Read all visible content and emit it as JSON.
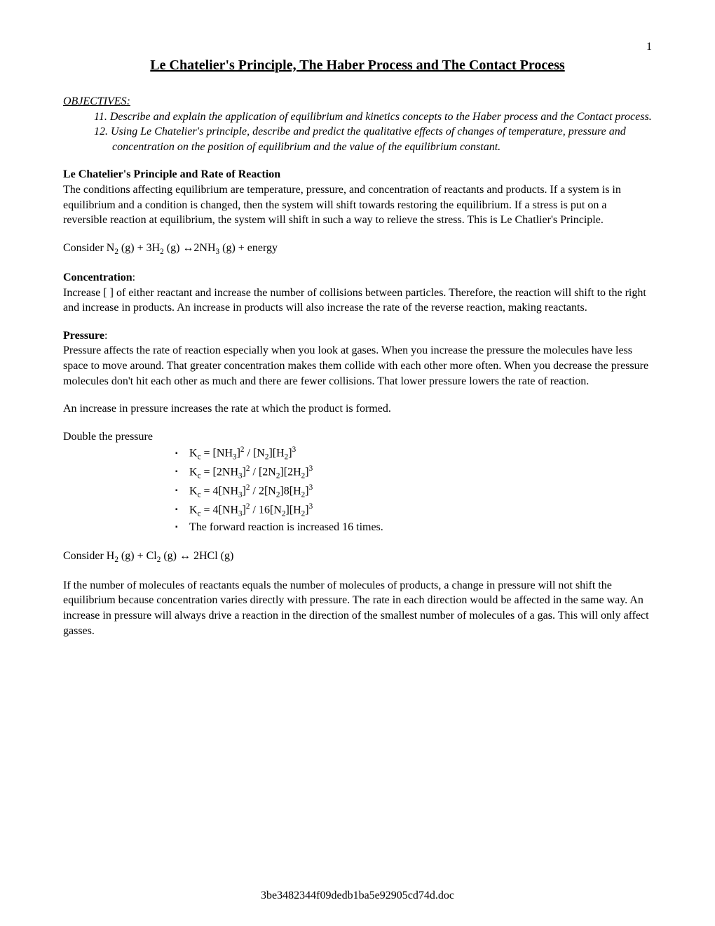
{
  "page_number": "1",
  "title": "Le Chatelier's Principle, The Haber Process and The Contact Process",
  "objectives_label": "OBJECTIVES:",
  "objectives": [
    "11. Describe and explain the application of equilibrium and kinetics concepts to the Haber process and the Contact process.",
    "12. Using Le Chatelier's principle, describe and predict the qualitative effects of changes of temperature, pressure and concentration on the position of equilibrium and the value of the equilibrium constant."
  ],
  "section1_heading": "Le Chatelier's Principle and Rate of Reaction",
  "section1_body": "The conditions affecting equilibrium are temperature, pressure, and concentration of reactants and products.  If a system is in equilibrium and a condition is changed, then the system will shift towards restoring the equilibrium.  If a stress is put on a reversible reaction at equilibrium, the system will shift in such a way to relieve the stress.  This is Le Chatlier's Principle.",
  "consider1_prefix": "Consider N",
  "consider1_rest": " (g) + 3H",
  "consider1_tail": " (g) ↔2NH",
  "consider1_end": " (g) + energy",
  "concentration_heading": "Concentration",
  "concentration_body": "Increase [ ] of either reactant and increase the number of collisions between particles.  Therefore, the reaction will shift to the right and increase in products.  An increase in products will also increase the rate of the reverse reaction, making reactants.",
  "pressure_heading": "Pressure",
  "pressure_body": "Pressure affects the rate of reaction especially when you look at gases.  When you increase the pressure the molecules have less space to move around.  That greater concentration makes them collide with each other more often.  When you decrease the pressure molecules don't hit each other as much and there are fewer collisions.  That lower pressure lowers the rate of reaction.",
  "pressure_line": "An increase in pressure increases the rate at which the product is formed.",
  "double_pressure": "Double the pressure",
  "kc_lines": {
    "a_pre": "K",
    "a_sub": "c",
    "a_mid": " = [NH",
    "a_s1": "3",
    "a_mid2": "]",
    "a_sup1": "2",
    "a_mid3": " / [N",
    "a_s2": "2",
    "a_mid4": "][H",
    "a_s3": "2",
    "a_mid5": "]",
    "a_sup2": "3",
    "b_pre": "K",
    "b_sub": "c",
    "b_mid": " = [2NH",
    "b_s1": "3",
    "b_mid2": "]",
    "b_sup1": "2",
    "b_mid3": " / [2N",
    "b_s2": "2",
    "b_mid4": "][2H",
    "b_s3": "2",
    "b_mid5": "]",
    "b_sup2": "3",
    "c_pre": "K",
    "c_sub": "c",
    "c_mid": " = 4[NH",
    "c_s1": "3",
    "c_mid2": "]",
    "c_sup1": "2",
    "c_mid3": " / 2[N",
    "c_s2": "2",
    "c_mid4": "]8[H",
    "c_s3": "2",
    "c_mid5": "]",
    "c_sup2": "3",
    "d_pre": "K",
    "d_sub": "c",
    "d_mid": " = 4[NH",
    "d_s1": "3",
    "d_mid2": "]",
    "d_sup1": "2",
    "d_mid3": " / 16[N",
    "d_s2": "2",
    "d_mid4": "][H",
    "d_s3": "2",
    "d_mid5": "]",
    "d_sup2": "3",
    "e": "The forward reaction is increased 16 times."
  },
  "consider2_prefix": "Consider H",
  "consider2_mid": " (g) + Cl",
  "consider2_tail": " (g) ↔ 2HCl (g)",
  "final_para": "If the number of molecules of reactants equals the number of molecules of products, a change in pressure will not shift the equilibrium because concentration varies directly with pressure.  The rate in each direction would be affected in the same way.  An increase in pressure will always drive a reaction in the direction of the smallest number of molecules of a gas.  This will only affect gasses.",
  "footer": "3be3482344f09dedb1ba5e92905cd74d.doc",
  "colon": ":",
  "sub2": "2",
  "sub3": "3"
}
